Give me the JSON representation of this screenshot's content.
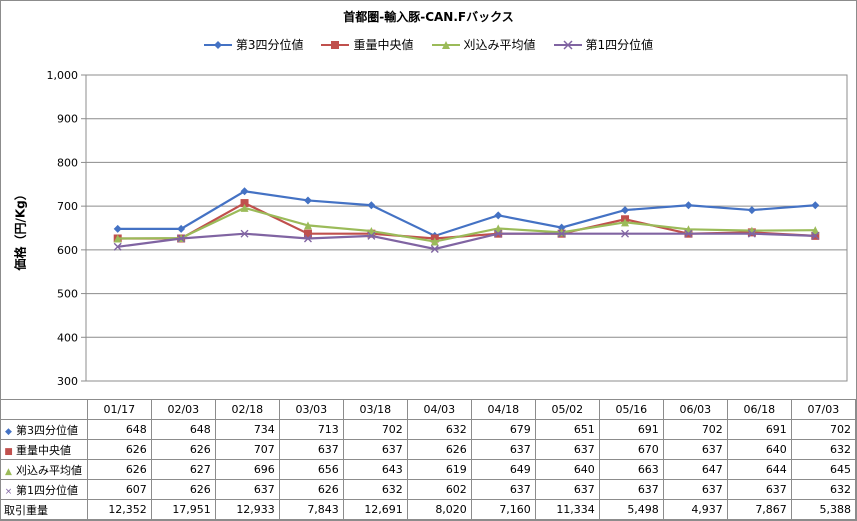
{
  "chart_data": {
    "type": "line",
    "title": "首都圏-輸入豚-CAN.Fバックス",
    "ylabel": "価格（円/Kg）",
    "ylim": [
      300,
      1000
    ],
    "yticks": [
      "300",
      "400",
      "500",
      "600",
      "700",
      "800",
      "900",
      "1,000"
    ],
    "grid": true,
    "legend": "top",
    "categories": [
      "01/17",
      "02/03",
      "02/18",
      "03/03",
      "03/18",
      "04/03",
      "04/18",
      "05/02",
      "05/16",
      "06/03",
      "06/18",
      "07/03"
    ],
    "series": [
      {
        "name": "第3四分位値",
        "color": "#4472c4",
        "marker": "diamond",
        "values": [
          648,
          648,
          734,
          713,
          702,
          632,
          679,
          651,
          691,
          702,
          691,
          702
        ]
      },
      {
        "name": "重量中央値",
        "color": "#c0504d",
        "marker": "square",
        "values": [
          626,
          626,
          707,
          637,
          637,
          626,
          637,
          637,
          670,
          637,
          640,
          632
        ]
      },
      {
        "name": "刈込み平均値",
        "color": "#9bbb59",
        "marker": "triangle",
        "values": [
          626,
          627,
          696,
          656,
          643,
          619,
          649,
          640,
          663,
          647,
          644,
          645
        ]
      },
      {
        "name": "第1四分位値",
        "color": "#8064a2",
        "marker": "x",
        "values": [
          607,
          626,
          637,
          626,
          632,
          602,
          637,
          637,
          637,
          637,
          637,
          632
        ]
      }
    ],
    "table_rows": [
      {
        "label": "取引重量",
        "values": [
          "12,352",
          "17,951",
          "12,933",
          "7,843",
          "12,691",
          "8,020",
          "7,160",
          "11,334",
          "5,498",
          "4,937",
          "7,867",
          "5,388"
        ]
      }
    ]
  }
}
